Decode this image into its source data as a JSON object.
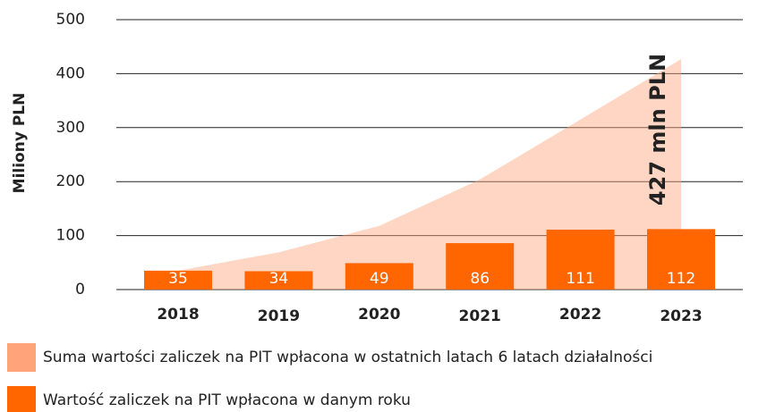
{
  "chart_data": {
    "type": "bar",
    "y_label": "Miliony PLN",
    "categories": [
      "2018",
      "2019",
      "2020",
      "2021",
      "2022",
      "2023"
    ],
    "series": [
      {
        "name": "Suma wartości zaliczek na PIT wpłacona w ostatnich latach 6 latach działalności",
        "type": "area",
        "color": "#ffa37a",
        "values": [
          35,
          69,
          118,
          204,
          315,
          427
        ]
      },
      {
        "name": "Wartość zaliczek na PIT wpłacona w danym roku",
        "type": "bar",
        "color": "#ff6600",
        "values": [
          35,
          34,
          49,
          86,
          111,
          112
        ]
      }
    ],
    "annotation": "427 mln PLN",
    "ylim": [
      0,
      500
    ],
    "yticks": [
      0,
      100,
      200,
      300,
      400,
      500
    ],
    "grid": true
  }
}
